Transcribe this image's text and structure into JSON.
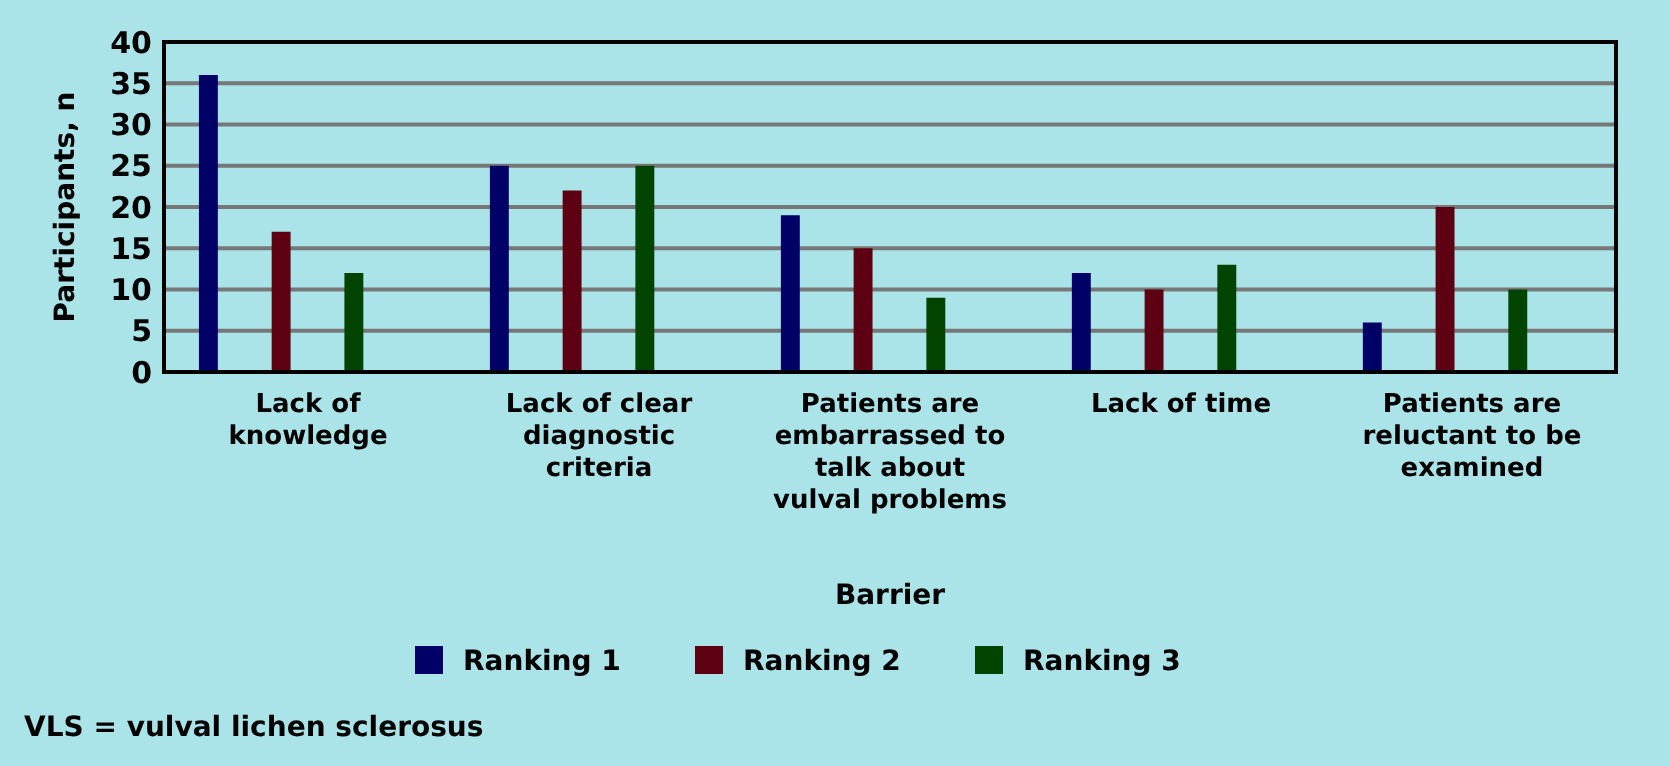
{
  "chart_data": {
    "type": "bar",
    "categories": [
      "Lack of knowledge",
      "Lack of clear diagnostic criteria",
      "Patients are embarrassed to talk about vulval problems",
      "Lack of time",
      "Patients are reluctant to be examined"
    ],
    "series": [
      {
        "name": "Ranking 1",
        "color": "#000066",
        "values": [
          36,
          25,
          19,
          12,
          6
        ]
      },
      {
        "name": "Ranking 2",
        "color": "#5c0012",
        "values": [
          17,
          22,
          15,
          10,
          20
        ]
      },
      {
        "name": "Ranking 3",
        "color": "#004400",
        "values": [
          12,
          25,
          9,
          13,
          10
        ]
      }
    ],
    "xlabel": "Barrier",
    "ylabel": "Participants, n",
    "ylim": [
      0,
      40
    ],
    "yticks": [
      0,
      5,
      10,
      15,
      20,
      25,
      30,
      35,
      40
    ],
    "grid": "y",
    "legend": "bottom",
    "annotations": [
      "VLS = vulval lichen sclerosus"
    ]
  }
}
